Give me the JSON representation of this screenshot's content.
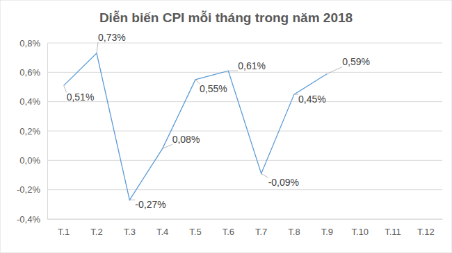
{
  "chart_data": {
    "type": "line",
    "title": "Diễn biến CPI mỗi tháng trong năm 2018",
    "categories": [
      "T.1",
      "T.2",
      "T.3",
      "T.4",
      "T.5",
      "T.6",
      "T.7",
      "T.8",
      "T.9",
      "T.10",
      "T.11",
      "T.12"
    ],
    "values": [
      0.51,
      0.73,
      -0.27,
      0.08,
      0.55,
      0.61,
      -0.09,
      0.45,
      0.59,
      null,
      null,
      null
    ],
    "value_labels": [
      "0,51%",
      "0,73%",
      "-0,27%",
      "0,08%",
      "0,55%",
      "0,61%",
      "-0,09%",
      "0,45%",
      "0,59%",
      null,
      null,
      null
    ],
    "color": "#5b9bd5",
    "ylim": [
      -0.4,
      0.8
    ],
    "yticks": [
      {
        "value": -0.4,
        "label": "-0,4%"
      },
      {
        "value": -0.2,
        "label": "-0,2%"
      },
      {
        "value": 0,
        "label": "0,0%"
      },
      {
        "value": 0.2,
        "label": "0,2%"
      },
      {
        "value": 0.4,
        "label": "0,4%"
      },
      {
        "value": 0.6,
        "label": "0,6%"
      },
      {
        "value": 0.8,
        "label": "0,8%"
      }
    ],
    "grid": true,
    "data_labels": true
  }
}
